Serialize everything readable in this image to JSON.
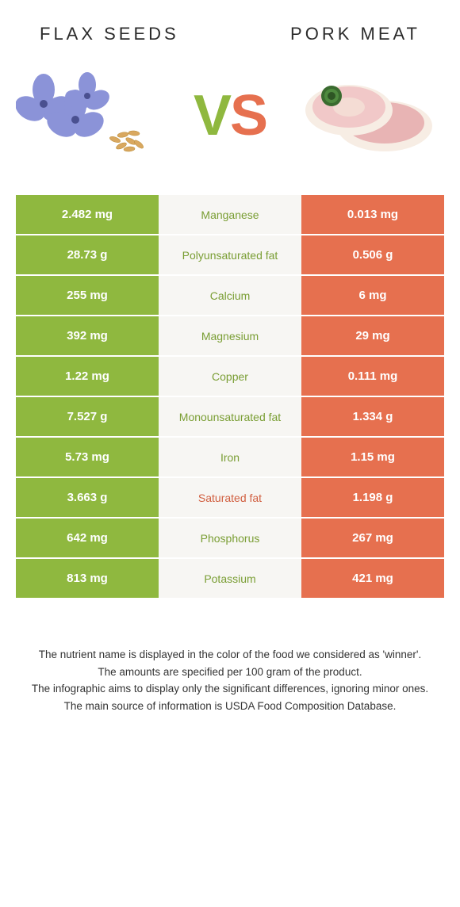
{
  "left_food": {
    "title": "Flax seeds"
  },
  "right_food": {
    "title": "Pork meat"
  },
  "vs_text": {
    "v": "V",
    "s": "S"
  },
  "colors": {
    "left": "#8fb83f",
    "right": "#e6704f",
    "mid_bg": "#f7f6f3",
    "left_text": "#7a9e34",
    "right_text": "#d15f40"
  },
  "rows": [
    {
      "label": "Manganese",
      "left": "2.482 mg",
      "right": "0.013 mg",
      "winner": "left"
    },
    {
      "label": "Polyunsaturated fat",
      "left": "28.73 g",
      "right": "0.506 g",
      "winner": "left"
    },
    {
      "label": "Calcium",
      "left": "255 mg",
      "right": "6 mg",
      "winner": "left"
    },
    {
      "label": "Magnesium",
      "left": "392 mg",
      "right": "29 mg",
      "winner": "left"
    },
    {
      "label": "Copper",
      "left": "1.22 mg",
      "right": "0.111 mg",
      "winner": "left"
    },
    {
      "label": "Monounsaturated fat",
      "left": "7.527 g",
      "right": "1.334 g",
      "winner": "left"
    },
    {
      "label": "Iron",
      "left": "5.73 mg",
      "right": "1.15 mg",
      "winner": "left"
    },
    {
      "label": "Saturated fat",
      "left": "3.663 g",
      "right": "1.198 g",
      "winner": "right"
    },
    {
      "label": "Phosphorus",
      "left": "642 mg",
      "right": "267 mg",
      "winner": "left"
    },
    {
      "label": "Potassium",
      "left": "813 mg",
      "right": "421 mg",
      "winner": "left"
    }
  ],
  "footer": {
    "l1": "The nutrient name is displayed in the color of the food we considered as 'winner'.",
    "l2": "The amounts are specified per 100 gram of the product.",
    "l3": "The infographic aims to display only the significant differences, ignoring minor ones.",
    "l4": "The main source of information is USDA Food Composition Database."
  }
}
